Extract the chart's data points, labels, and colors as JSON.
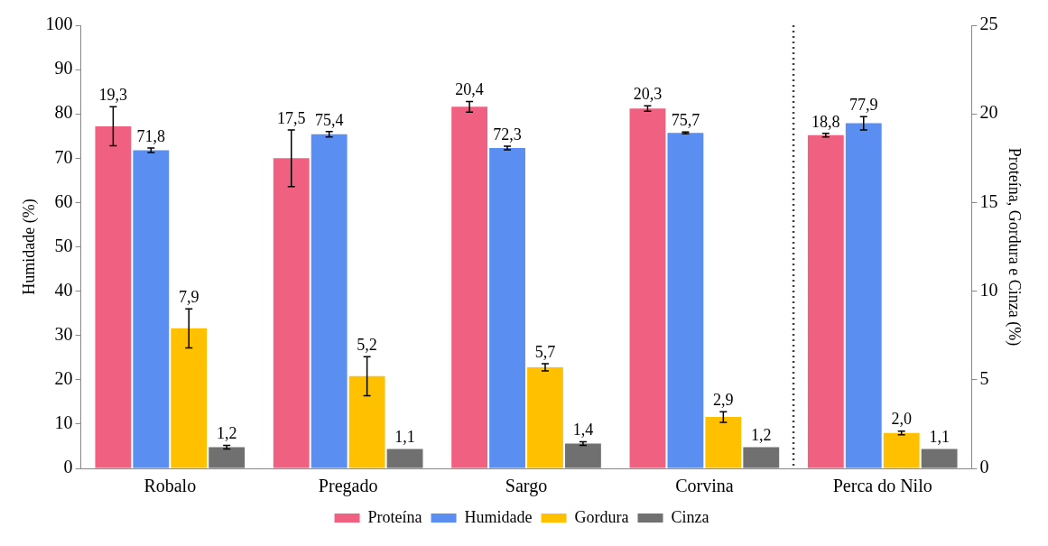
{
  "chart_data": {
    "type": "bar",
    "categories": [
      "Robalo",
      "Pregado",
      "Sargo",
      "Corvina",
      "Perca do Nilo"
    ],
    "ylabel": "Humidade (%)",
    "y2label": "Proteína, Gordura e Cinza (%)",
    "ylim": [
      0,
      100
    ],
    "yticks": [
      0,
      10,
      20,
      30,
      40,
      50,
      60,
      70,
      80,
      90,
      100
    ],
    "y2lim": [
      0,
      25
    ],
    "y2ticks": [
      0,
      5,
      10,
      15,
      20,
      25
    ],
    "grid": false,
    "legend": "bottom",
    "series": [
      {
        "name": "Proteína",
        "color": "#f06080",
        "axis": "y2",
        "values": [
          19.3,
          17.5,
          20.4,
          20.3,
          18.8
        ],
        "errors": [
          1.1,
          1.6,
          0.3,
          0.15,
          0.1
        ],
        "value_labels": [
          "19,3",
          "17,5",
          "20,4",
          "20,3",
          "18,8"
        ]
      },
      {
        "name": "Humidade",
        "color": "#5a8ef0",
        "axis": "y",
        "values": [
          71.8,
          75.4,
          72.3,
          75.7,
          77.9
        ],
        "errors": [
          0.5,
          0.6,
          0.4,
          0.2,
          1.5
        ],
        "value_labels": [
          "71,8",
          "75,4",
          "72,3",
          "75,7",
          "77,9"
        ]
      },
      {
        "name": "Gordura",
        "color": "#ffc000",
        "axis": "y2",
        "values": [
          7.9,
          5.2,
          5.7,
          2.9,
          2.0
        ],
        "errors": [
          1.1,
          1.1,
          0.2,
          0.3,
          0.1
        ],
        "value_labels": [
          "7,9",
          "5,2",
          "5,7",
          "2,9",
          "2,0"
        ]
      },
      {
        "name": "Cinza",
        "color": "#707070",
        "axis": "y2",
        "values": [
          1.2,
          1.1,
          1.4,
          1.2,
          1.1
        ],
        "errors": [
          0.1,
          null,
          0.1,
          null,
          null
        ],
        "value_labels": [
          "1,2",
          "1,1",
          "1,4",
          "1,2",
          "1,1"
        ]
      }
    ]
  }
}
